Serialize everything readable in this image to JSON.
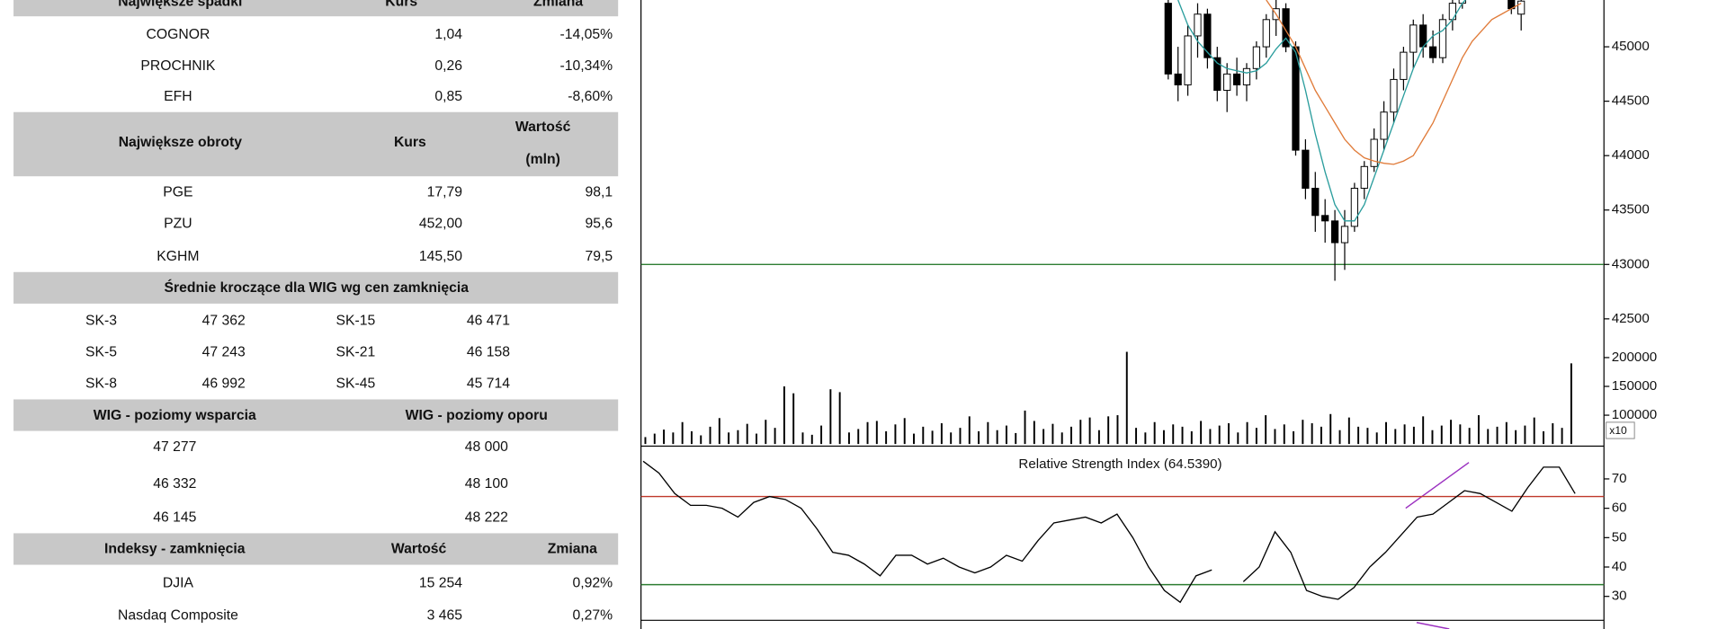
{
  "tables": {
    "losers": {
      "headers": [
        "Największe spadki",
        "Kurs",
        "Zmiana"
      ],
      "rows": [
        [
          "COGNOR",
          "1,04",
          "-14,05%"
        ],
        [
          "PROCHNIK",
          "0,26",
          "-10,34%"
        ],
        [
          "EFH",
          "0,85",
          "-8,60%"
        ]
      ]
    },
    "turnover": {
      "headers": [
        "Największe obroty",
        "Kurs",
        [
          "Wartość",
          "(mln)"
        ]
      ],
      "rows": [
        [
          "PGE",
          "17,79",
          "98,1"
        ],
        [
          "PZU",
          "452,00",
          "95,6"
        ],
        [
          "KGHM",
          "145,50",
          "79,5"
        ]
      ]
    },
    "moving_averages": {
      "title": "Średnie kroczące dla WIG wg cen zamknięcia",
      "rows": [
        [
          "SK-3",
          "47 362",
          "SK-15",
          "46 471"
        ],
        [
          "SK-5",
          "47 243",
          "SK-21",
          "46 158"
        ],
        [
          "SK-8",
          "46 992",
          "SK-45",
          "45 714"
        ]
      ]
    },
    "levels": {
      "headers": [
        "WIG - poziomy wsparcia",
        "WIG - poziomy oporu"
      ],
      "rows": [
        [
          "47 277",
          "48 000"
        ],
        [
          "46 332",
          "48 100"
        ],
        [
          "46 145",
          "48 222"
        ]
      ]
    },
    "indices": {
      "headers": [
        "Indeksy - zamknięcia",
        "Wartość",
        "Zmiana"
      ],
      "rows": [
        [
          "DJIA",
          "15 254",
          "0,92%"
        ],
        [
          "Nasdaq Composite",
          "3 465",
          "0,27%"
        ]
      ]
    }
  },
  "chart_data": [
    {
      "type": "candlestick",
      "open": [
        45400,
        44750,
        44650,
        45100,
        45300,
        44900,
        44600,
        44750,
        44650,
        44800,
        45000,
        45250,
        45350,
        45000,
        44050,
        43700,
        43450,
        43400,
        43200,
        43350,
        43700,
        43900,
        44150,
        44400,
        44700,
        44950,
        45200,
        45000,
        44900,
        45250,
        45400,
        45550,
        45700,
        45600,
        45850,
        45750,
        45300
      ],
      "high": [
        45430,
        45000,
        45200,
        45400,
        45350,
        45000,
        44850,
        44900,
        44850,
        45050,
        45300,
        45430,
        45400,
        45050,
        44150,
        43850,
        43600,
        43500,
        43500,
        43750,
        43950,
        44250,
        44500,
        44800,
        45000,
        45250,
        45300,
        45150,
        45300,
        45430,
        45600,
        45750,
        45800,
        45900,
        45950,
        45800,
        45450
      ],
      "low": [
        44700,
        44500,
        44550,
        44900,
        44800,
        44500,
        44400,
        44550,
        44500,
        44700,
        44900,
        45100,
        44950,
        44000,
        43600,
        43300,
        43200,
        42850,
        42950,
        43300,
        43600,
        43850,
        44050,
        44300,
        44600,
        44800,
        44900,
        44850,
        44850,
        45150,
        45350,
        45500,
        45550,
        45550,
        45700,
        45300,
        45150
      ],
      "close": [
        44750,
        44650,
        45100,
        45300,
        44900,
        44600,
        44750,
        44650,
        44800,
        45000,
        45250,
        45350,
        45000,
        44050,
        43700,
        43450,
        43400,
        43200,
        43350,
        43700,
        43900,
        44150,
        44400,
        44700,
        44950,
        45200,
        45000,
        44900,
        45250,
        45400,
        45550,
        45700,
        45600,
        45850,
        45750,
        45350,
        45420
      ],
      "up_color": "#ffffff",
      "down_color": "#000000",
      "overlays": [
        {
          "color": "#2a9d9d",
          "values": [
            null,
            45430,
            45200,
            45050,
            44950,
            44850,
            44800,
            44780,
            44760,
            44780,
            44850,
            44980,
            45080,
            44950,
            44600,
            44200,
            43850,
            43550,
            43400,
            43400,
            43550,
            43800,
            44050,
            44300,
            44550,
            44800,
            45000,
            45100,
            45150,
            45250,
            45400,
            45500,
            45600,
            45650,
            45700,
            45750,
            45800
          ]
        },
        {
          "color": "#e07b39",
          "values": [
            null,
            null,
            null,
            null,
            null,
            null,
            null,
            null,
            null,
            null,
            45430,
            45300,
            45150,
            45000,
            44800,
            44600,
            44450,
            44300,
            44150,
            44050,
            43980,
            43950,
            43930,
            43920,
            43950,
            44000,
            44150,
            44300,
            44500,
            44700,
            44900,
            45050,
            45150,
            45250,
            45300,
            45350,
            45400
          ]
        }
      ],
      "reference_lines": [
        {
          "value": 43000,
          "color": "#2e7d32"
        }
      ],
      "ylim": [
        42250,
        45430
      ],
      "yticks": [
        42500,
        43000,
        43500,
        44000,
        44500,
        45000
      ]
    },
    {
      "type": "bar",
      "color": "#000000",
      "axis_note": "x10",
      "values": [
        62000,
        68000,
        75000,
        70000,
        88000,
        72000,
        65000,
        80000,
        95000,
        70000,
        74000,
        85000,
        68000,
        92000,
        78000,
        150000,
        138000,
        70000,
        66000,
        82000,
        145000,
        140000,
        70000,
        76000,
        88000,
        90000,
        72000,
        84000,
        95000,
        68000,
        80000,
        73000,
        86000,
        70000,
        78000,
        98000,
        72000,
        88000,
        74000,
        82000,
        69000,
        108000,
        90000,
        76000,
        85000,
        70000,
        80000,
        92000,
        96000,
        74000,
        98000,
        100000,
        210000,
        78000,
        70000,
        88000,
        74000,
        84000,
        80000,
        72000,
        90000,
        76000,
        82000,
        86000,
        70000,
        88000,
        78000,
        100000,
        76000,
        84000,
        72000,
        92000,
        86000,
        80000,
        102000,
        74000,
        96000,
        80000,
        78000,
        70000,
        88000,
        76000,
        84000,
        80000,
        98000,
        74000,
        82000,
        92000,
        84000,
        78000,
        100000,
        76000,
        80000,
        88000,
        74000,
        82000,
        96000,
        72000,
        86000,
        78000,
        190000
      ],
      "ylim": [
        50000,
        220000
      ],
      "yticks": [
        100000,
        150000,
        200000
      ]
    },
    {
      "type": "line",
      "title": "Relative Strength Index (64.5390)",
      "color": "#000000",
      "values": [
        76,
        72,
        65,
        61,
        61,
        60,
        57,
        62,
        64,
        63,
        60,
        53,
        45,
        44,
        41,
        37,
        44,
        44,
        41,
        43,
        40,
        38,
        40,
        44,
        42,
        49,
        55,
        56,
        57,
        55,
        58,
        50,
        40,
        32,
        28,
        37,
        39,
        null,
        35,
        40,
        52,
        45,
        32,
        30,
        29,
        33,
        40,
        45,
        51,
        57,
        58,
        62,
        66,
        65,
        62,
        59,
        67,
        74,
        74,
        65
      ],
      "reference_lines": [
        {
          "value": 64,
          "color": "#c0392b"
        },
        {
          "value": 34,
          "color": "#2e7d32"
        }
      ],
      "ylim": [
        22.6,
        80.4
      ],
      "yticks": [
        30,
        40,
        50,
        60,
        70
      ]
    }
  ]
}
